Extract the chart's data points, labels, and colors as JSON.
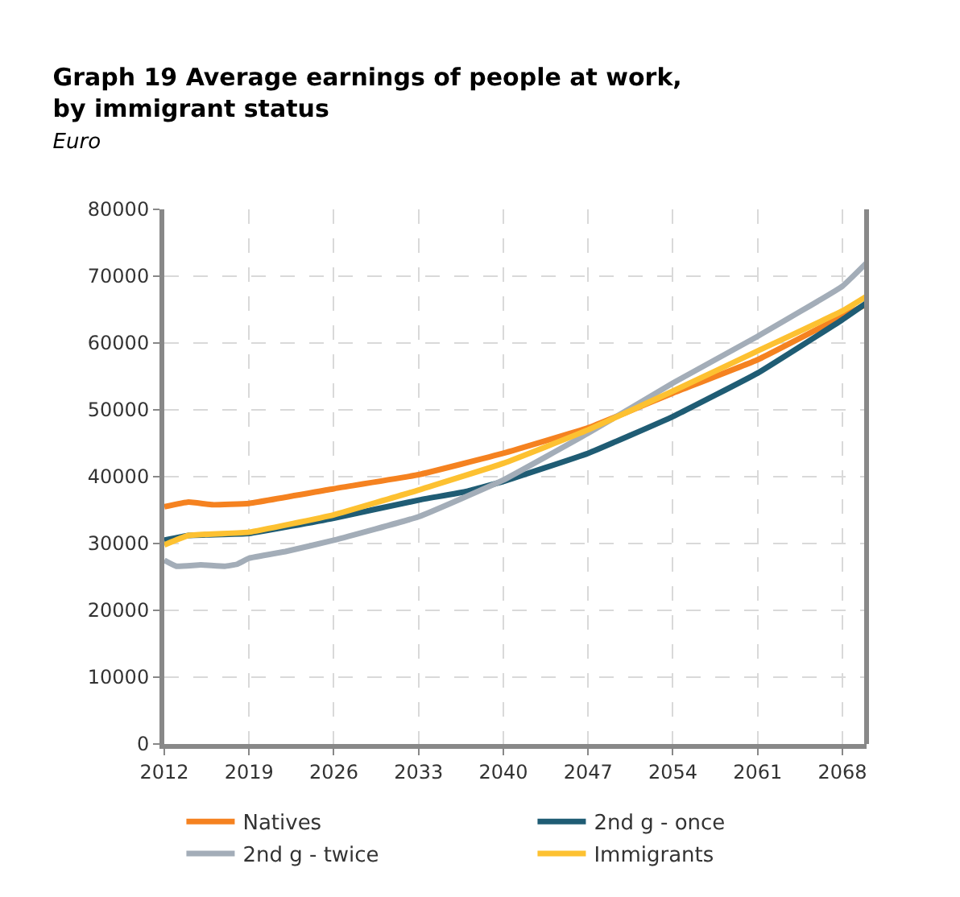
{
  "chart_data": {
    "type": "line",
    "title": "Graph 19 Average earnings of people at work,\nby immigrant status",
    "subtitle": "Euro",
    "xlim": [
      2012,
      2070
    ],
    "xticks": [
      2012,
      2019,
      2026,
      2033,
      2040,
      2047,
      2054,
      2061,
      2068
    ],
    "ylim": [
      0,
      80000
    ],
    "yticks": [
      0,
      10000,
      20000,
      30000,
      40000,
      50000,
      60000,
      70000,
      80000
    ],
    "grid": true,
    "legend": "bottom",
    "marker": "none",
    "line_style": "solid",
    "series": [
      {
        "name": "Natives",
        "color": "#f58220",
        "x": [
          2012,
          2014,
          2016,
          2019,
          2026,
          2033,
          2040,
          2047,
          2050,
          2054,
          2061,
          2068,
          2070
        ],
        "values": [
          35500,
          36200,
          35800,
          36000,
          38200,
          40300,
          43500,
          47300,
          49500,
          52500,
          57500,
          64000,
          65800
        ]
      },
      {
        "name": "2nd g - once",
        "color": "#1f5c74",
        "x": [
          2012,
          2014,
          2019,
          2026,
          2033,
          2037,
          2040,
          2047,
          2054,
          2061,
          2068,
          2070
        ],
        "values": [
          30500,
          31200,
          31500,
          33800,
          36500,
          37800,
          39300,
          43500,
          49000,
          55500,
          63500,
          66000
        ]
      },
      {
        "name": "2nd g - twice",
        "color": "#a3adb8",
        "x": [
          2012,
          2013,
          2015,
          2017,
          2018,
          2019,
          2022,
          2026,
          2033,
          2040,
          2047,
          2054,
          2061,
          2068,
          2070
        ],
        "values": [
          27500,
          26600,
          26800,
          26600,
          26900,
          27800,
          28800,
          30500,
          34000,
          39500,
          46500,
          54000,
          61000,
          68500,
          72000
        ]
      },
      {
        "name": "Immigrants",
        "color": "#fdc131",
        "x": [
          2012,
          2014,
          2019,
          2026,
          2033,
          2040,
          2047,
          2054,
          2061,
          2068,
          2070
        ],
        "values": [
          29800,
          31200,
          31700,
          34300,
          38000,
          42000,
          47000,
          52800,
          58800,
          64800,
          67000
        ]
      }
    ]
  }
}
